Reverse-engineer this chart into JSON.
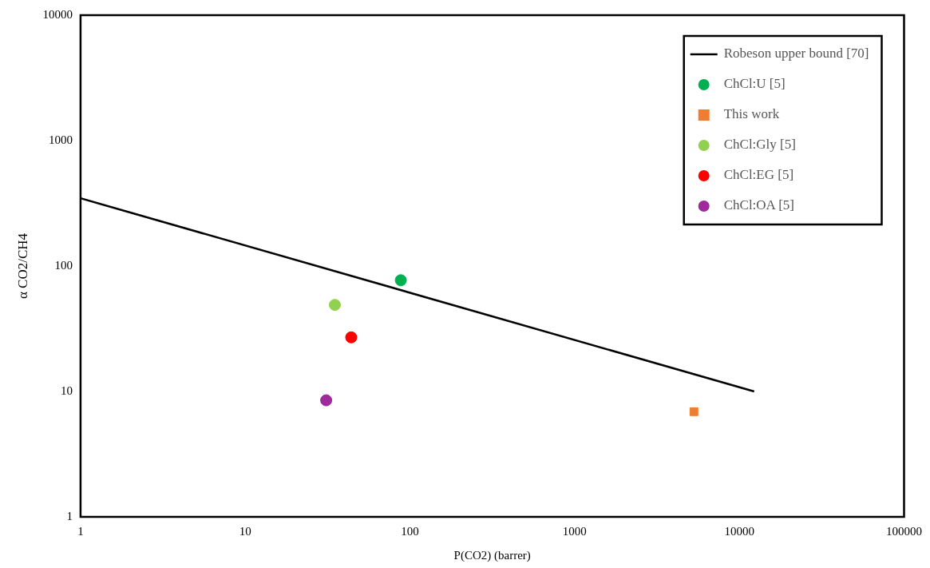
{
  "chart_data": {
    "type": "scatter",
    "xlabel": "P(CO2) (barrer)",
    "ylabel": "α CO2/CH4",
    "log": "xy",
    "xlim": [
      1,
      100000
    ],
    "xticks": [
      1,
      10,
      100,
      1000,
      10000,
      100000
    ],
    "ylim": [
      1,
      10000
    ],
    "yticks": [
      1,
      10,
      100,
      1000,
      10000
    ],
    "grid": false,
    "legend": "top right",
    "series": [
      {
        "name": "Robeson upper bound [70]",
        "type": "line",
        "marker": "none",
        "color": "#000000",
        "x": [
          1,
          12300
        ],
        "values": [
          347,
          10
        ]
      },
      {
        "name": "ChCl:U [5]",
        "marker": "circle",
        "color": "#00b050",
        "x": [
          88
        ],
        "values": [
          77
        ]
      },
      {
        "name": "This work",
        "marker": "square",
        "color": "#ed7d31",
        "x": [
          5300
        ],
        "values": [
          6.9
        ]
      },
      {
        "name": "ChCl:Gly [5]",
        "marker": "circle",
        "color": "#92d050",
        "x": [
          35
        ],
        "values": [
          49
        ]
      },
      {
        "name": "ChCl:EG [5]",
        "marker": "circle",
        "color": "#ff0000",
        "x": [
          44
        ],
        "values": [
          27
        ]
      },
      {
        "name": "ChCl:OA [5]",
        "marker": "circle",
        "color": "#9e2a9c",
        "x": [
          31
        ],
        "values": [
          8.5
        ]
      }
    ]
  }
}
